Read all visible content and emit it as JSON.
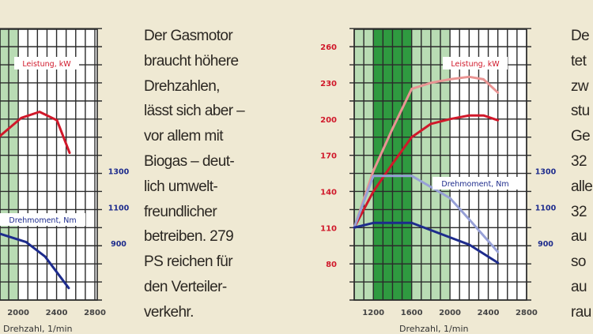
{
  "article": {
    "middle_column": [
      "Der Gasmotor",
      "braucht höhere",
      "Drehzahlen,",
      "lässt sich aber –",
      "vor allem mit",
      "Biogas – deut-",
      "lich  umwelt-",
      "freundlicher",
      "betreiben. 279",
      "PS reichen für",
      "den Verteiler-",
      "verkehr."
    ],
    "right_column_fragments": [
      "De",
      "tet",
      "zw",
      "stu",
      "Ge",
      "32",
      "alle",
      "32",
      "au",
      "so",
      "au",
      "rau"
    ]
  },
  "colors": {
    "background": "#efe9d3",
    "power_dark": "#d0182a",
    "power_light": "#e99493",
    "torque_light": "#97a0d6",
    "torque_dark": "#1d2b8c",
    "band_dark": "#2f9a40",
    "band_light": "#b9dcb4",
    "grid": "#2a2a2a"
  },
  "chart_data": [
    {
      "type": "line",
      "xlabel": "Drehzahl, 1/min",
      "x_ticks": [
        "2000",
        "2400",
        "2800"
      ],
      "x_tick_values": [
        2000,
        2400,
        2800
      ],
      "right_ticks": [
        "1300",
        "1100",
        "900"
      ],
      "right_tick_values": [
        1300,
        1100,
        900
      ],
      "xlim": [
        1800,
        2800
      ],
      "ylim_left": [
        50,
        275
      ],
      "ylim_right": [
        590,
        2090
      ],
      "grid": true,
      "bands": [
        {
          "from": 1000,
          "to": 2000,
          "shade": "light"
        },
        {
          "from": 1200,
          "to": 1600,
          "shade": "dark"
        }
      ],
      "labels": {
        "power": "Leistung, kW",
        "torque": "Drehmoment, Nm"
      },
      "series": [
        {
          "name": "Leistung, kW",
          "axis": "left",
          "color": "#d0182a",
          "points": [
            [
              1809,
              186
            ],
            [
              2032,
              201
            ],
            [
              2222,
              206
            ],
            [
              2404,
              199
            ],
            [
              2536,
              172
            ]
          ]
        },
        {
          "name": "Drehmoment, Nm",
          "axis": "right",
          "color": "#1d2b8c",
          "points": [
            [
              1809,
              953
            ],
            [
              2082,
              907
            ],
            [
              2280,
              827
            ],
            [
              2527,
              653
            ]
          ]
        }
      ]
    },
    {
      "type": "line",
      "xlabel": "Drehzahl, 1/min",
      "x_ticks": [
        "1200",
        "1600",
        "2000",
        "2400",
        "2800"
      ],
      "x_tick_values": [
        1200,
        1600,
        2000,
        2400,
        2800
      ],
      "left_ticks": [
        "260",
        "230",
        "200",
        "170",
        "140",
        "110",
        "80"
      ],
      "left_tick_values": [
        260,
        230,
        200,
        170,
        140,
        110,
        80
      ],
      "right_ticks": [
        "1300",
        "1100",
        "900"
      ],
      "right_tick_values": [
        1300,
        1100,
        900
      ],
      "xlim": [
        1000,
        2800
      ],
      "ylim_left": [
        50,
        275
      ],
      "ylim_right": [
        590,
        2090
      ],
      "grid": true,
      "bands": [
        {
          "from": 1000,
          "to": 2000,
          "shade": "light"
        },
        {
          "from": 1200,
          "to": 1600,
          "shade": "dark"
        }
      ],
      "labels": {
        "power": "Leistung, kW",
        "torque": "Drehmoment, Nm"
      },
      "series": [
        {
          "name": "Leistung, kW",
          "axis": "left",
          "color": "#e99493",
          "points": [
            [
              1000,
              110
            ],
            [
              1200,
              157
            ],
            [
              1400,
              192
            ],
            [
              1600,
              225
            ],
            [
              1800,
              230
            ],
            [
              2000,
              233
            ],
            [
              2200,
              235
            ],
            [
              2350,
              233
            ],
            [
              2500,
              222
            ]
          ]
        },
        {
          "name": "Leistung, kW",
          "axis": "left",
          "color": "#d0182a",
          "points": [
            [
              1000,
              110
            ],
            [
              1200,
              140
            ],
            [
              1400,
              163
            ],
            [
              1600,
              185
            ],
            [
              1800,
              196
            ],
            [
              2000,
              200
            ],
            [
              2200,
              203
            ],
            [
              2350,
              203
            ],
            [
              2500,
              199
            ]
          ]
        },
        {
          "name": "Drehmoment, Nm",
          "axis": "right",
          "color": "#97a0d6",
          "points": [
            [
              1000,
              987
            ],
            [
              1200,
              1273
            ],
            [
              1600,
              1273
            ],
            [
              2000,
              1150
            ],
            [
              2200,
              1033
            ],
            [
              2500,
              853
            ]
          ]
        },
        {
          "name": "Drehmoment, Nm",
          "axis": "right",
          "color": "#1d2b8c",
          "points": [
            [
              1000,
              987
            ],
            [
              1200,
              1013
            ],
            [
              1600,
              1013
            ],
            [
              2000,
              933
            ],
            [
              2200,
              893
            ],
            [
              2500,
              793
            ]
          ]
        }
      ]
    }
  ]
}
